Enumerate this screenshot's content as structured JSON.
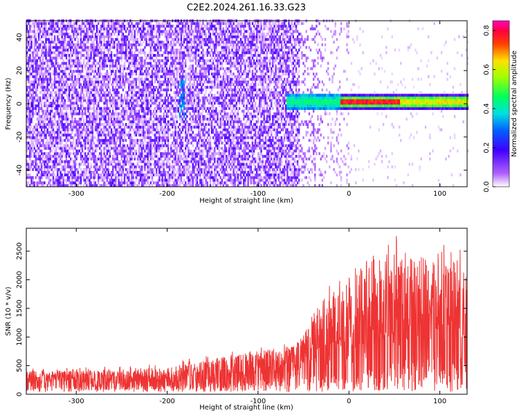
{
  "title": "C2E2.2024.261.16.33.G23",
  "chart_data": [
    {
      "type": "heatmap",
      "xlabel": "Height of straight line (km)",
      "ylabel": "Frequency (Hz)",
      "xlim": [
        -355,
        130
      ],
      "ylim": [
        -50,
        50
      ],
      "xticks": [
        -300,
        -200,
        -100,
        0,
        100
      ],
      "yticks": [
        -40,
        -20,
        0,
        20,
        40
      ],
      "colorbar": {
        "label": "Normalized spectral amplitude",
        "range": [
          0.0,
          0.85
        ],
        "ticks": [
          0.0,
          0.2,
          0.4,
          0.6,
          0.8
        ],
        "colormap": "rainbow (white-violet-blue-cyan-green-yellow-red-magenta)"
      },
      "features": {
        "noise_extent_x": [
          -355,
          0
        ],
        "strong_noise_extent_x": [
          -355,
          -55
        ],
        "signal_band": {
          "x_start": -70,
          "x_end": 130,
          "frequency": 0.5,
          "peak_amplitude": 0.82
        },
        "weak_trace": {
          "x": -185,
          "freq_range": [
            -10,
            15
          ]
        }
      },
      "tick_labels_x": [
        "-300",
        "-200",
        "-100",
        "0",
        "100"
      ],
      "tick_labels_y": [
        "40",
        "20",
        "0",
        "-20",
        "-40"
      ],
      "colorbar_tick_labels": [
        "0.0",
        "0.2",
        "0.4",
        "0.6",
        "0.8"
      ]
    },
    {
      "type": "line",
      "xlabel": "Height of straight line (km)",
      "ylabel": "SNR (10 * v/v)",
      "xlim": [
        -355,
        130
      ],
      "ylim": [
        0,
        2900
      ],
      "xticks": [
        -300,
        -200,
        -100,
        0,
        100
      ],
      "yticks": [
        0,
        500,
        1000,
        1500,
        2000,
        2500
      ],
      "tick_labels_x": [
        "-300",
        "-200",
        "-100",
        "0",
        "100"
      ],
      "tick_labels_y": [
        "0",
        "500",
        "1000",
        "1500",
        "2000",
        "2500"
      ],
      "color": "#ee3333",
      "envelope": {
        "x": [
          -355,
          -300,
          -250,
          -200,
          -150,
          -100,
          -60,
          -40,
          -20,
          0,
          20,
          40,
          60,
          80,
          100,
          130
        ],
        "upper": [
          400,
          420,
          420,
          470,
          620,
          750,
          850,
          1300,
          1700,
          1850,
          2050,
          2300,
          2500,
          2400,
          2300,
          2200
        ],
        "lower": [
          120,
          130,
          100,
          120,
          180,
          220,
          300,
          350,
          300,
          250,
          380,
          500,
          550,
          600,
          650,
          600
        ]
      }
    }
  ]
}
